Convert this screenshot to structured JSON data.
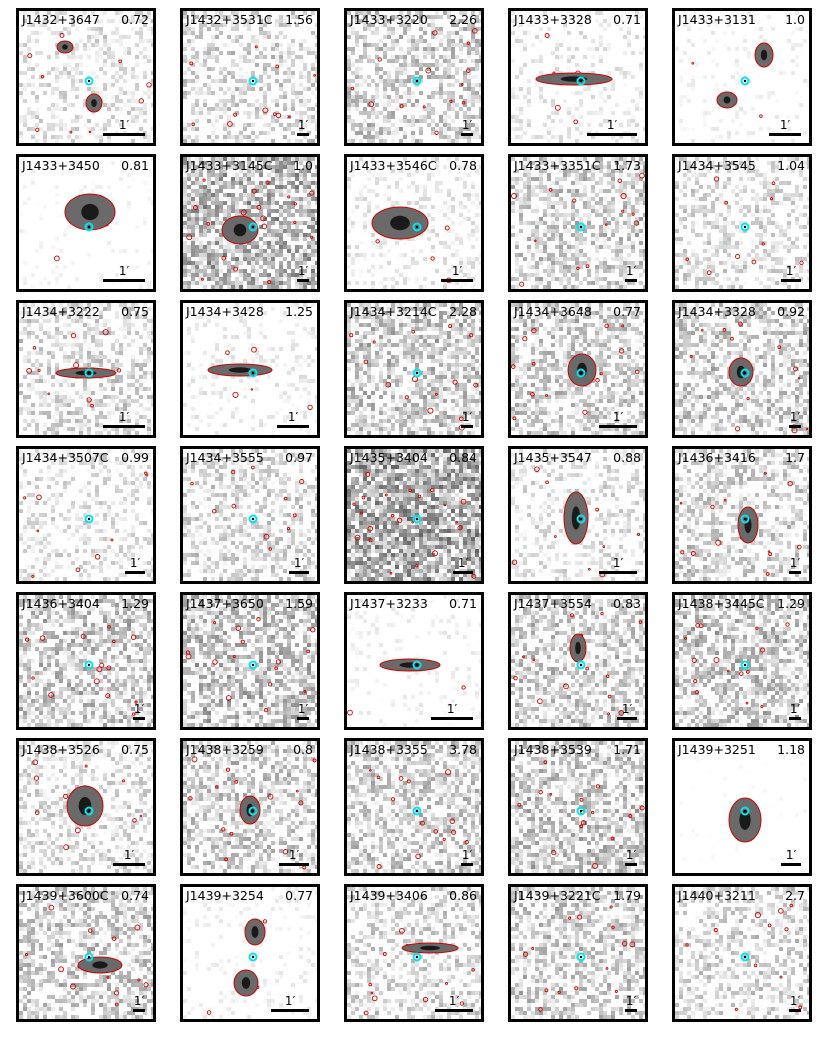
{
  "panels": [
    {
      "name": "J1432+3647",
      "z": "0.72"
    },
    {
      "name": "J1432+3531C",
      "z": "1.56"
    },
    {
      "name": "J1433+3220",
      "z": "2.26"
    },
    {
      "name": "J1433+3328",
      "z": "0.71"
    },
    {
      "name": "J1433+3131",
      "z": "1.0"
    },
    {
      "name": "J1433+3450",
      "z": "0.81"
    },
    {
      "name": "J1433+3145C",
      "z": "1.0"
    },
    {
      "name": "J1433+3546C",
      "z": "0.78"
    },
    {
      "name": "J1433+3351C",
      "z": "1.73"
    },
    {
      "name": "J1434+3545",
      "z": "1.04"
    },
    {
      "name": "J1434+3222",
      "z": "0.75"
    },
    {
      "name": "J1434+3428",
      "z": "1.25"
    },
    {
      "name": "J1434+3214C",
      "z": "2.28"
    },
    {
      "name": "J1434+3648",
      "z": "0.77"
    },
    {
      "name": "J1434+3328",
      "z": "0.92"
    },
    {
      "name": "J1434+3507C",
      "z": "0.99"
    },
    {
      "name": "J1434+3555",
      "z": "0.97"
    },
    {
      "name": "J1435+3404",
      "z": "0.84"
    },
    {
      "name": "J1435+3547",
      "z": "0.88"
    },
    {
      "name": "J1436+3416",
      "z": "1.7"
    },
    {
      "name": "J1436+3404",
      "z": "1.29"
    },
    {
      "name": "J1437+3650",
      "z": "1.59"
    },
    {
      "name": "J1437+3233",
      "z": "0.71"
    },
    {
      "name": "J1437+3554",
      "z": "0.83"
    },
    {
      "name": "J1438+3445C",
      "z": "1.29"
    },
    {
      "name": "J1438+3526",
      "z": "0.75"
    },
    {
      "name": "J1438+3259",
      "z": "0.8"
    },
    {
      "name": "J1438+3355",
      "z": "3.78"
    },
    {
      "name": "J1438+3539",
      "z": "1.71"
    },
    {
      "name": "J1439+3251",
      "z": "1.18"
    },
    {
      "name": "J1439+3600C",
      "z": "0.74"
    },
    {
      "name": "J1439+3254",
      "z": "0.77"
    },
    {
      "name": "J1439+3406",
      "z": "0.86"
    },
    {
      "name": "J1439+3221C",
      "z": "1.79"
    },
    {
      "name": "J1440+3211",
      "z": "2.7"
    }
  ],
  "scale_label": "1′",
  "colors": {
    "contour": "#d10000",
    "marker": "#00e5ee",
    "frame": "#000000"
  }
}
